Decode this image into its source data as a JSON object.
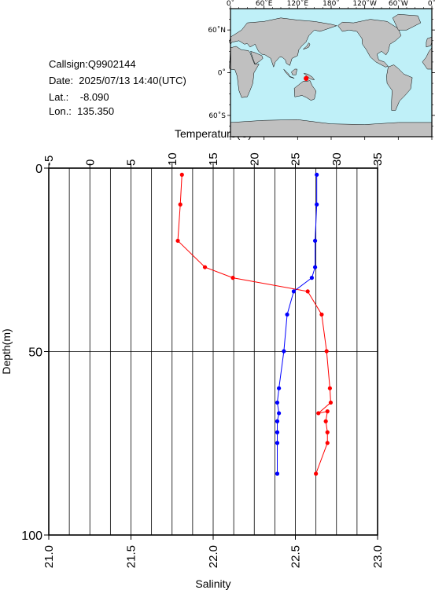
{
  "info": {
    "callsign": "Callsign:Q9902144",
    "date": "Date:  2025/07/13 14:40(UTC)",
    "lat": "Lat.:    -8.090",
    "lon": "Lon.:  135.350"
  },
  "map": {
    "top_labels": [
      "0˚",
      "60˚E",
      "120˚E",
      "180˚",
      "120˚W",
      "60˚W",
      "0˚"
    ],
    "left_labels": [
      "60˚N",
      "0˚",
      "60˚S"
    ],
    "ocean_color": "#bff0f8",
    "land_color": "#c0c0c0",
    "marker_color": "#ff0000",
    "station": {
      "lon": 135.35,
      "lat": -8.09
    }
  },
  "chart_data": {
    "type": "line",
    "top_axis": {
      "label": "Temperature(C)",
      "ticks": [
        -5,
        0,
        5,
        10,
        15,
        20,
        25,
        30,
        35
      ],
      "range": [
        -5,
        35
      ],
      "grid_step": 2.5
    },
    "bottom_axis": {
      "label": "Salinity",
      "ticks": [
        "21.0",
        "21.5",
        "22.0",
        "22.5",
        "23.0"
      ],
      "range": [
        21.0,
        23.0
      ]
    },
    "left_axis": {
      "label": "Depth(m)",
      "ticks": [
        0,
        50,
        100
      ],
      "range": [
        0,
        100
      ],
      "inverted": true
    },
    "series": [
      {
        "axis": "top",
        "color": "#ff0000",
        "points": [
          [
            11.2,
            1.8
          ],
          [
            11.0,
            9.9
          ],
          [
            10.7,
            19.8
          ],
          [
            14.0,
            27.0
          ],
          [
            17.4,
            29.9
          ],
          [
            26.5,
            33.6
          ],
          [
            28.2,
            39.9
          ],
          [
            28.8,
            49.9
          ],
          [
            29.2,
            60.0
          ],
          [
            29.3,
            63.9
          ],
          [
            27.8,
            66.8
          ],
          [
            28.9,
            66.3
          ],
          [
            28.7,
            69.0
          ],
          [
            28.9,
            72.0
          ],
          [
            28.9,
            74.9
          ],
          [
            27.5,
            83.3
          ]
        ]
      },
      {
        "axis": "bottom",
        "color": "#0000ff",
        "points": [
          [
            22.63,
            1.8
          ],
          [
            22.63,
            9.9
          ],
          [
            22.62,
            19.8
          ],
          [
            22.62,
            27.0
          ],
          [
            22.6,
            29.9
          ],
          [
            22.49,
            33.6
          ],
          [
            22.45,
            39.9
          ],
          [
            22.43,
            49.9
          ],
          [
            22.4,
            60.0
          ],
          [
            22.39,
            63.9
          ],
          [
            22.4,
            66.8
          ],
          [
            22.39,
            69.0
          ],
          [
            22.39,
            72.0
          ],
          [
            22.39,
            74.9
          ],
          [
            22.39,
            83.3
          ]
        ]
      }
    ],
    "grid": true
  }
}
